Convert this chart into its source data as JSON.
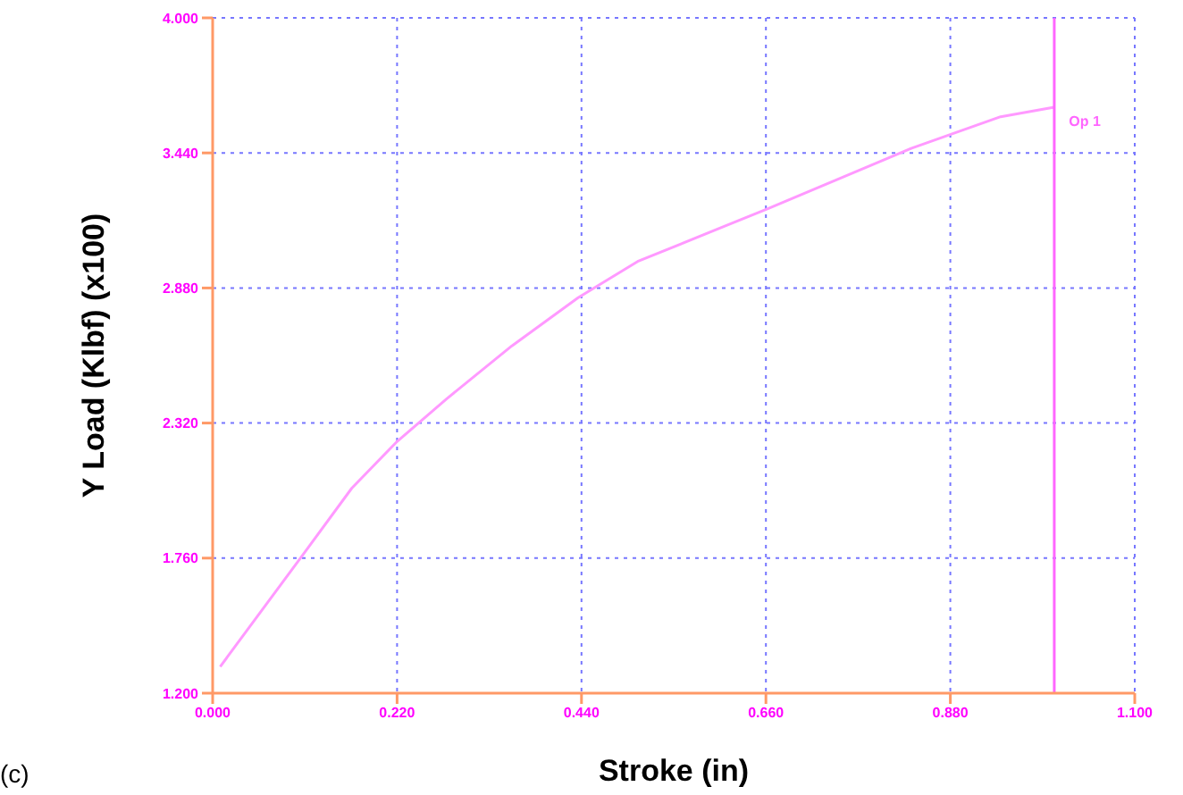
{
  "chart_data": {
    "type": "line",
    "xlabel": "Stroke (in)",
    "ylabel": "Y Load (Klbf) (x100)",
    "x": [
      0.009,
      0.109,
      0.166,
      0.219,
      0.279,
      0.357,
      0.436,
      0.507,
      0.663,
      0.834,
      0.94,
      1.004
    ],
    "series": [
      {
        "color": "#ff99ff",
        "values": [
          1.31,
          1.78,
          2.05,
          2.24,
          2.42,
          2.64,
          2.84,
          2.99,
          3.21,
          3.46,
          3.59,
          3.63
        ]
      }
    ],
    "xlim": [
      0,
      1.1
    ],
    "xticks": [
      {
        "value": 0,
        "label": "0.000"
      },
      {
        "value": 0.22,
        "label": "0.220"
      },
      {
        "value": 0.44,
        "label": "0.440"
      },
      {
        "value": 0.66,
        "label": "0.660"
      },
      {
        "value": 0.88,
        "label": "0.880"
      },
      {
        "value": 1.1,
        "label": "1.100"
      }
    ],
    "ylim": [
      1.2,
      4.0
    ],
    "yticks": [
      {
        "value": 1.2,
        "label": "1.200"
      },
      {
        "value": 1.76,
        "label": "1.760"
      },
      {
        "value": 2.32,
        "label": "2.320"
      },
      {
        "value": 2.88,
        "label": "2.880"
      },
      {
        "value": 3.44,
        "label": "3.440"
      },
      {
        "value": 4.0,
        "label": "4.000"
      }
    ],
    "grid": true,
    "marker": "none",
    "line_style": "solid",
    "ref_lines": [
      {
        "axis": "x",
        "value": 1.004,
        "label": "Op 1",
        "color": "#ff66ff"
      }
    ],
    "annotations": [
      "(c)"
    ]
  }
}
